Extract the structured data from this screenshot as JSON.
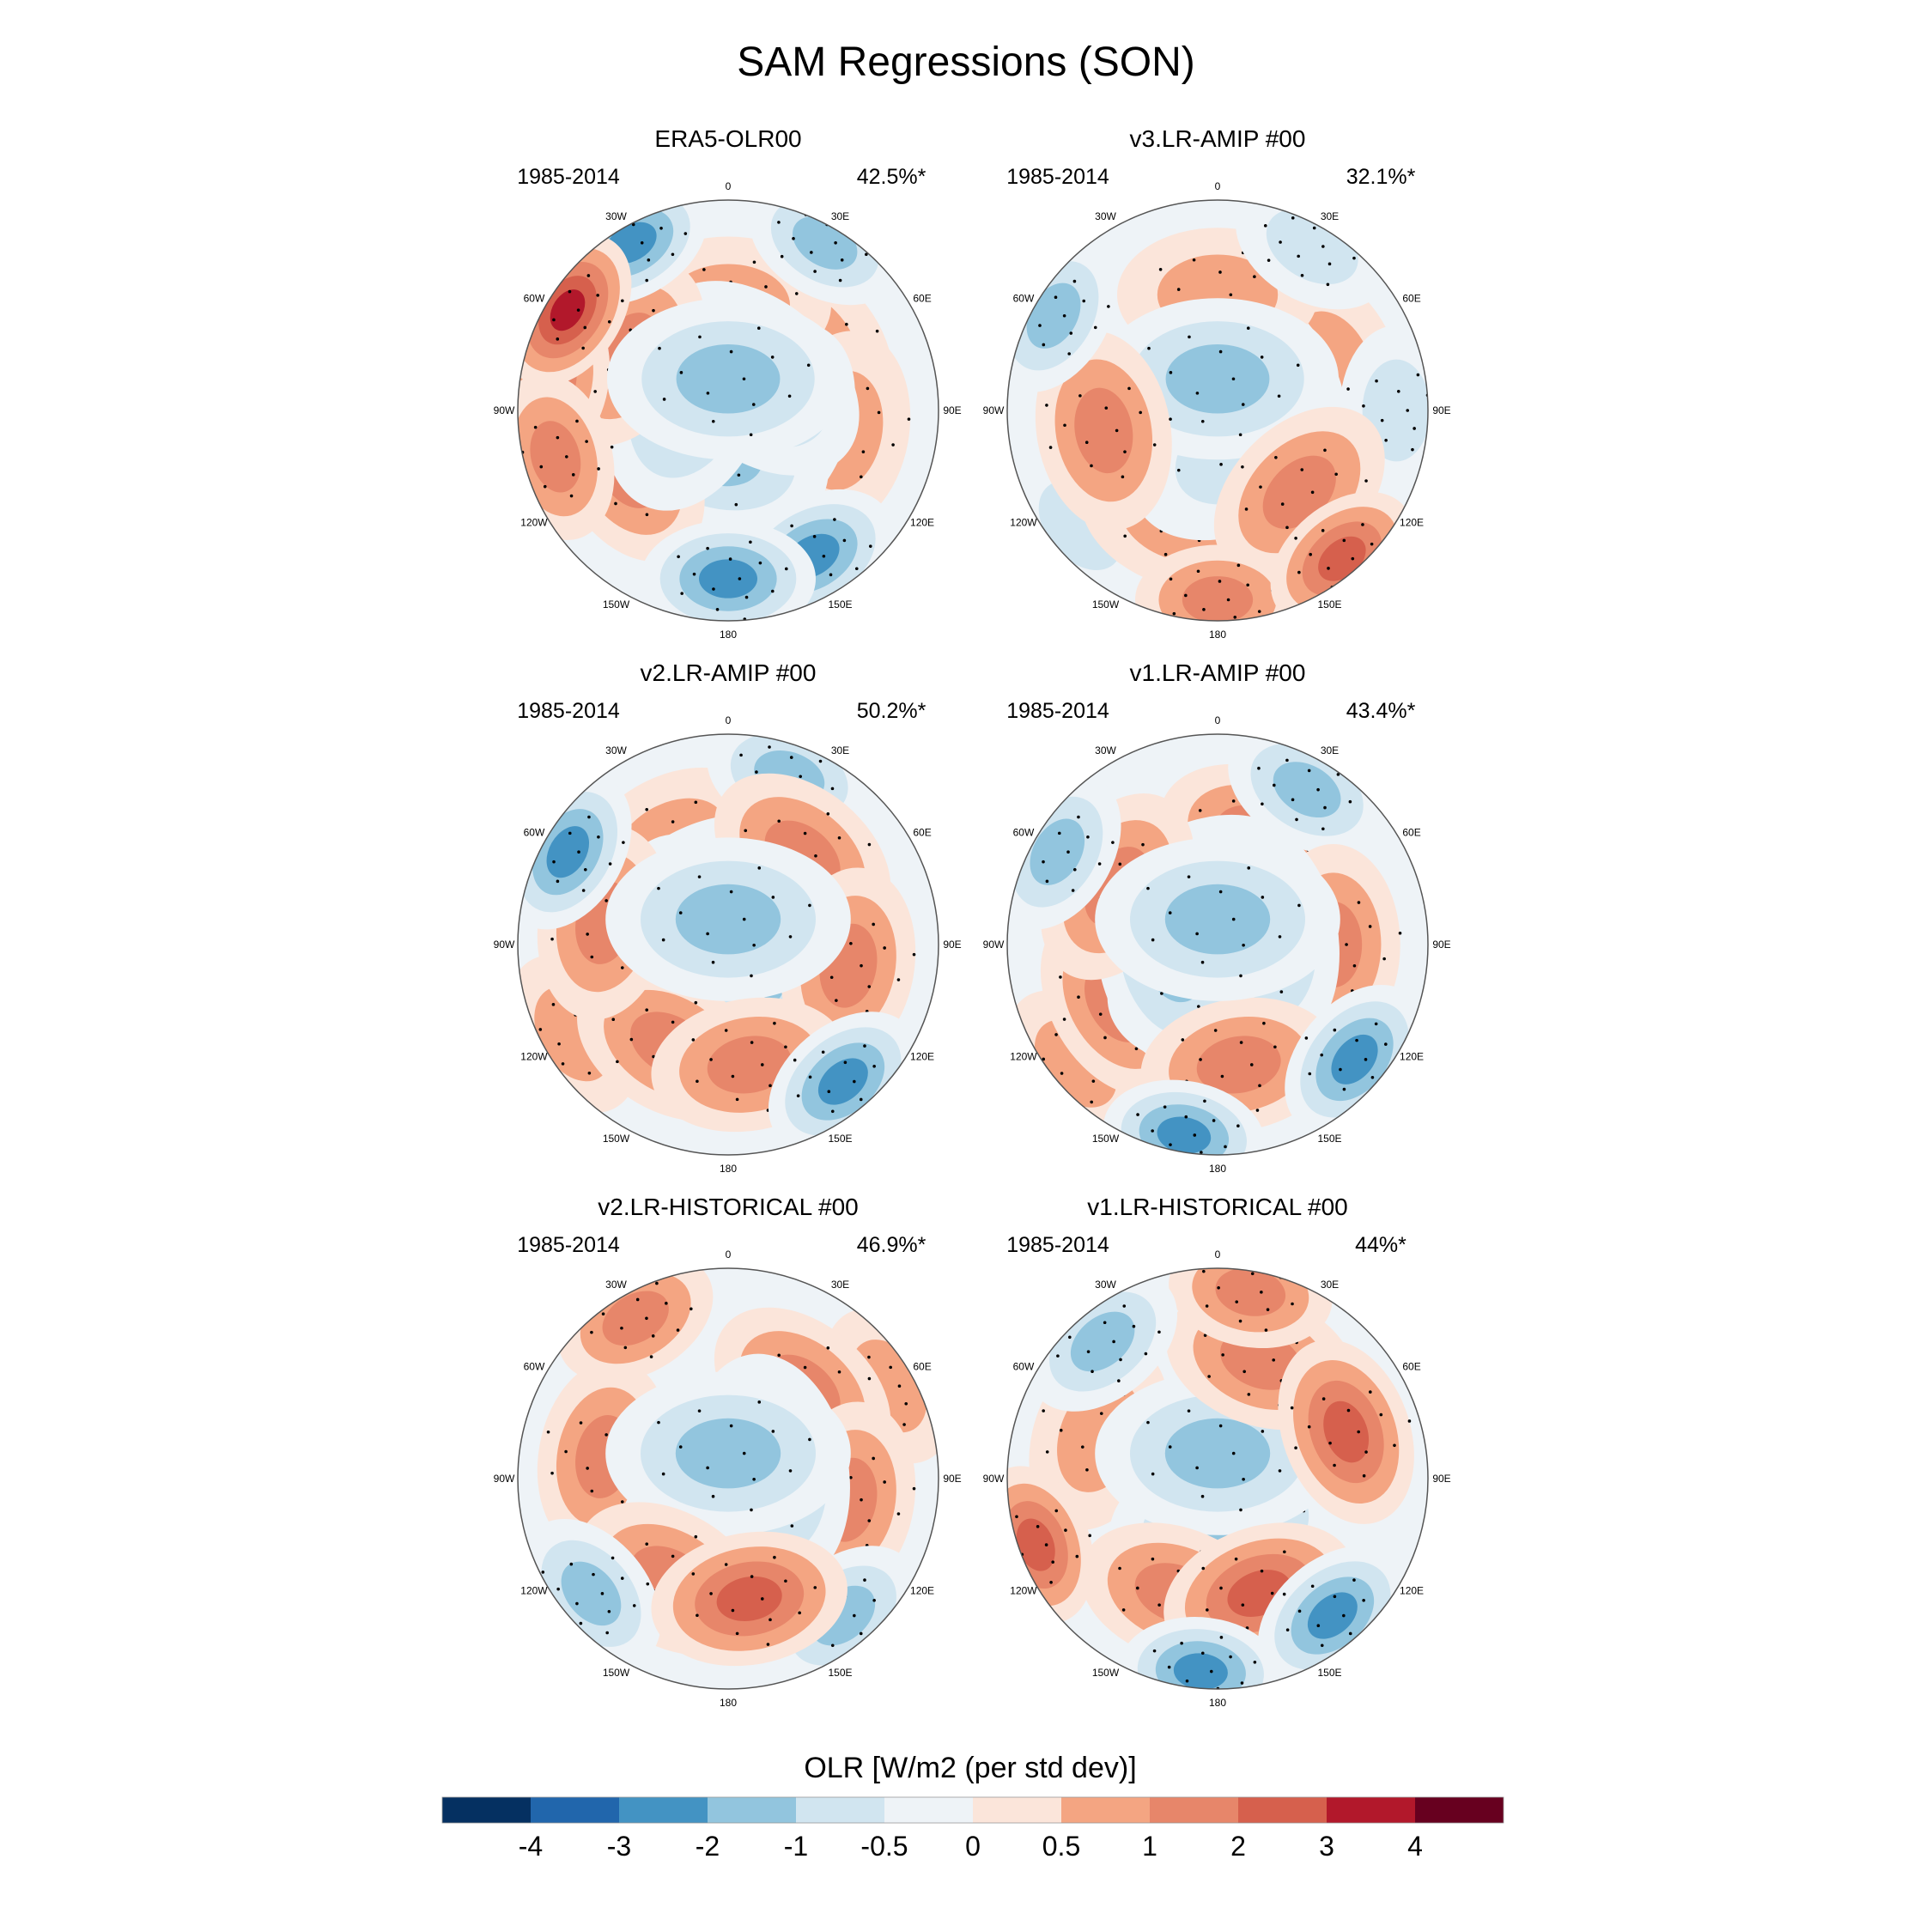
{
  "figure": {
    "title": "SAM Regressions (SON)"
  },
  "chart_data": {
    "type": "heatmap",
    "projection": "south-polar-stereographic",
    "title": "SAM Regressions (SON)",
    "lon_labels": [
      "0",
      "30E",
      "60E",
      "90E",
      "120E",
      "150E",
      "180",
      "150W",
      "120W",
      "90W",
      "60W",
      "30W"
    ],
    "panels": [
      {
        "title": "ERA5-OLR00",
        "period": "1985-2014",
        "variance": "42.5%*",
        "anomalies": [
          {
            "lon": 0,
            "ring": 0.15,
            "value": -2.2
          },
          {
            "lon": 40,
            "ring": 0.2,
            "value": -1.8
          },
          {
            "lon": 120,
            "ring": 0.2,
            "value": -1.6
          },
          {
            "lon": 200,
            "ring": 0.2,
            "value": -1.6
          },
          {
            "lon": 290,
            "ring": 0.2,
            "value": -1.8
          },
          {
            "lon": 0,
            "ring": 0.5,
            "value": 1.4
          },
          {
            "lon": 50,
            "ring": 0.5,
            "value": 1.2
          },
          {
            "lon": 100,
            "ring": 0.55,
            "value": 1.2
          },
          {
            "lon": 170,
            "ring": 0.52,
            "value": 1.0
          },
          {
            "lon": 240,
            "ring": 0.55,
            "value": 1.6
          },
          {
            "lon": 300,
            "ring": 0.55,
            "value": 2.0
          },
          {
            "lon": 302,
            "ring": 0.9,
            "value": 4.2
          },
          {
            "lon": 280,
            "ring": 0.85,
            "value": 2.0
          },
          {
            "lon": 255,
            "ring": 0.85,
            "value": 2.4
          },
          {
            "lon": 180,
            "ring": 0.8,
            "value": -3.2
          },
          {
            "lon": 150,
            "ring": 0.8,
            "value": -3.0
          },
          {
            "lon": 330,
            "ring": 0.92,
            "value": -3.2
          },
          {
            "lon": 30,
            "ring": 0.92,
            "value": -1.8
          }
        ]
      },
      {
        "title": "v3.LR-AMIP  #00",
        "period": "1985-2014",
        "variance": "32.1%*",
        "anomalies": [
          {
            "lon": 0,
            "ring": 0.15,
            "value": -1.6
          },
          {
            "lon": 60,
            "ring": 0.22,
            "value": -1.2
          },
          {
            "lon": 150,
            "ring": 0.22,
            "value": -1.4
          },
          {
            "lon": 240,
            "ring": 0.22,
            "value": -1.2
          },
          {
            "lon": 320,
            "ring": 0.22,
            "value": -1.2
          },
          {
            "lon": 0,
            "ring": 0.55,
            "value": 1.2
          },
          {
            "lon": 70,
            "ring": 0.58,
            "value": 0.8
          },
          {
            "lon": 135,
            "ring": 0.55,
            "value": 1.8
          },
          {
            "lon": 200,
            "ring": 0.55,
            "value": 1.2
          },
          {
            "lon": 260,
            "ring": 0.55,
            "value": 1.8
          },
          {
            "lon": 180,
            "ring": 0.9,
            "value": 1.8
          },
          {
            "lon": 140,
            "ring": 0.92,
            "value": 2.6
          },
          {
            "lon": 300,
            "ring": 0.9,
            "value": -2.0
          },
          {
            "lon": 90,
            "ring": 0.85,
            "value": -1.2
          },
          {
            "lon": 30,
            "ring": 0.9,
            "value": -1.4
          },
          {
            "lon": 230,
            "ring": 0.85,
            "value": -0.8
          }
        ]
      },
      {
        "title": "v2.LR-AMIP  #00",
        "period": "1985-2014",
        "variance": "50.2%*",
        "anomalies": [
          {
            "lon": 0,
            "ring": 0.12,
            "value": -2.2
          },
          {
            "lon": 80,
            "ring": 0.2,
            "value": -1.8
          },
          {
            "lon": 170,
            "ring": 0.2,
            "value": -1.8
          },
          {
            "lon": 260,
            "ring": 0.2,
            "value": -1.8
          },
          {
            "lon": 330,
            "ring": 0.22,
            "value": -1.6
          },
          {
            "lon": 40,
            "ring": 0.55,
            "value": 1.8
          },
          {
            "lon": 100,
            "ring": 0.58,
            "value": 2.0
          },
          {
            "lon": 170,
            "ring": 0.58,
            "value": 2.4
          },
          {
            "lon": 210,
            "ring": 0.55,
            "value": 1.8
          },
          {
            "lon": 280,
            "ring": 0.6,
            "value": 1.8
          },
          {
            "lon": 330,
            "ring": 0.55,
            "value": 1.2
          },
          {
            "lon": 140,
            "ring": 0.85,
            "value": -3.0
          },
          {
            "lon": 300,
            "ring": 0.88,
            "value": -2.6
          },
          {
            "lon": 20,
            "ring": 0.85,
            "value": -1.6
          },
          {
            "lon": 240,
            "ring": 0.85,
            "value": 1.4
          }
        ]
      },
      {
        "title": "v1.LR-AMIP  #00",
        "period": "1985-2014",
        "variance": "43.4%*",
        "anomalies": [
          {
            "lon": 0,
            "ring": 0.12,
            "value": -2.4
          },
          {
            "lon": 80,
            "ring": 0.2,
            "value": -2.0
          },
          {
            "lon": 170,
            "ring": 0.2,
            "value": -1.8
          },
          {
            "lon": 260,
            "ring": 0.2,
            "value": -2.0
          },
          {
            "lon": 330,
            "ring": 0.22,
            "value": -1.8
          },
          {
            "lon": 20,
            "ring": 0.55,
            "value": 1.6
          },
          {
            "lon": 90,
            "ring": 0.55,
            "value": 1.8
          },
          {
            "lon": 170,
            "ring": 0.58,
            "value": 2.0
          },
          {
            "lon": 240,
            "ring": 0.55,
            "value": 1.6
          },
          {
            "lon": 300,
            "ring": 0.55,
            "value": 2.0
          },
          {
            "lon": 130,
            "ring": 0.85,
            "value": -3.4
          },
          {
            "lon": 190,
            "ring": 0.92,
            "value": -3.2
          },
          {
            "lon": 300,
            "ring": 0.88,
            "value": -2.0
          },
          {
            "lon": 30,
            "ring": 0.85,
            "value": -1.6
          },
          {
            "lon": 230,
            "ring": 0.88,
            "value": 1.4
          }
        ]
      },
      {
        "title": "v2.LR-HISTORICAL  #00",
        "period": "1985-2014",
        "variance": "46.9%*",
        "anomalies": [
          {
            "lon": 0,
            "ring": 0.12,
            "value": -2.2
          },
          {
            "lon": 80,
            "ring": 0.2,
            "value": -2.0
          },
          {
            "lon": 170,
            "ring": 0.2,
            "value": -1.8
          },
          {
            "lon": 260,
            "ring": 0.2,
            "value": -1.6
          },
          {
            "lon": 330,
            "ring": 0.22,
            "value": -1.4
          },
          {
            "lon": 40,
            "ring": 0.55,
            "value": 1.8
          },
          {
            "lon": 100,
            "ring": 0.58,
            "value": 1.8
          },
          {
            "lon": 170,
            "ring": 0.58,
            "value": 3.0
          },
          {
            "lon": 210,
            "ring": 0.55,
            "value": 2.4
          },
          {
            "lon": 280,
            "ring": 0.6,
            "value": 1.6
          },
          {
            "lon": 330,
            "ring": 0.88,
            "value": 1.8
          },
          {
            "lon": 140,
            "ring": 0.85,
            "value": -2.4
          },
          {
            "lon": 230,
            "ring": 0.85,
            "value": -2.4
          },
          {
            "lon": 60,
            "ring": 0.88,
            "value": 1.2
          }
        ]
      },
      {
        "title": "v1.LR-HISTORICAL  #00",
        "period": "1985-2014",
        "variance": "44%*",
        "anomalies": [
          {
            "lon": 0,
            "ring": 0.12,
            "value": -1.8
          },
          {
            "lon": 80,
            "ring": 0.2,
            "value": -1.6
          },
          {
            "lon": 170,
            "ring": 0.22,
            "value": -1.6
          },
          {
            "lon": 260,
            "ring": 0.22,
            "value": -1.4
          },
          {
            "lon": 20,
            "ring": 0.6,
            "value": 1.8
          },
          {
            "lon": 70,
            "ring": 0.65,
            "value": 2.6
          },
          {
            "lon": 160,
            "ring": 0.58,
            "value": 2.8
          },
          {
            "lon": 200,
            "ring": 0.58,
            "value": 2.4
          },
          {
            "lon": 290,
            "ring": 0.6,
            "value": 1.4
          },
          {
            "lon": 250,
            "ring": 0.92,
            "value": 3.2
          },
          {
            "lon": 320,
            "ring": 0.85,
            "value": -2.2
          },
          {
            "lon": 140,
            "ring": 0.85,
            "value": -3.0
          },
          {
            "lon": 185,
            "ring": 0.92,
            "value": -3.2
          },
          {
            "lon": 10,
            "ring": 0.9,
            "value": 2.0
          }
        ]
      }
    ],
    "colorbar": {
      "label": "OLR [W/m2 (per std dev)]",
      "levels": [
        "-4",
        "-3",
        "-2",
        "-1",
        "-0.5",
        "0",
        "0.5",
        "1",
        "2",
        "3",
        "4"
      ],
      "colors": [
        "#053061",
        "#2166ac",
        "#4393c3",
        "#92c5de",
        "#d1e5f0",
        "#eef3f7",
        "#fbe5da",
        "#f4a582",
        "#e7866a",
        "#d6604d",
        "#b2182b",
        "#67001f"
      ]
    }
  }
}
